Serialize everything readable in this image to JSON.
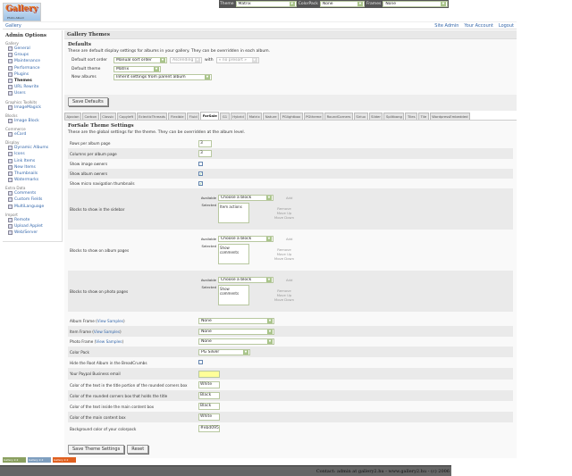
{
  "logo": {
    "text": "Gallery",
    "sub": "Photo Album"
  },
  "topbar": {
    "theme_label": "Theme",
    "theme_value": "Matrix",
    "colorpack_label": "ColorPack",
    "colorpack_value": "None",
    "frames_label": "Frames",
    "frames_value": "None"
  },
  "breadcrumb": "Gallery",
  "header_links": [
    "Site Admin",
    "Your Account",
    "Logout"
  ],
  "sidebar": {
    "title": "Admin Options",
    "groups": [
      {
        "label": "Gallery",
        "items": [
          "General",
          "Groups",
          "Maintenance",
          "Performance",
          "Plugins",
          "Themes",
          "URL Rewrite",
          "Users"
        ]
      },
      {
        "label": "Graphics Toolkits",
        "items": [
          "ImageMagick"
        ]
      },
      {
        "label": "Blocks",
        "items": [
          "Image Block"
        ]
      },
      {
        "label": "Commerce",
        "items": [
          "eCard"
        ]
      },
      {
        "label": "Display",
        "items": [
          "Dynamic Albums",
          "Icons",
          "Link Items",
          "New Items",
          "Thumbnails",
          "Watermarks"
        ]
      },
      {
        "label": "Extra Data",
        "items": [
          "Comments",
          "Custom Fields",
          "MultiLanguage"
        ]
      },
      {
        "label": "Import",
        "items": [
          "Remote",
          "Upload Applet",
          "Web/Server"
        ]
      }
    ],
    "current": "Themes"
  },
  "page": {
    "title": "Gallery Themes",
    "defaults_title": "Defaults",
    "defaults_desc": "These are default display settings for albums in your gallery. They can be overridden in each album.",
    "sort_label": "Default sort order",
    "sort_value": "Manual sort order",
    "order_value": "Ascending",
    "with_label": "with",
    "preset_value": "« no presort »",
    "theme_label": "Default theme",
    "theme_value": "Matrix",
    "new_albums_label": "New albums",
    "new_albums_value": "Inherit settings from parent album",
    "save_defaults": "Save Defaults"
  },
  "tabs": [
    "Ajaxian",
    "Carbon",
    "Classic",
    "Copyleft",
    "EclecticThreads",
    "Flexible",
    "Fluid",
    "ForSale",
    "G1",
    "Hybrid",
    "Matrix",
    "Nature",
    "PGlightbox",
    "PGtheme",
    "RoundCorners",
    "Siriux",
    "Slider",
    "Splitbang",
    "Tiles",
    "Tile",
    "WordpressEmbedded"
  ],
  "active_tab": "ForSale",
  "theme": {
    "title": "ForSale Theme Settings",
    "desc": "These are the global settings for the theme. They can be overridden at the album level.",
    "rows_label": "Rows per album page",
    "rows_value": "3",
    "cols_label": "Columns per album page",
    "cols_value": "3",
    "owners_label": "Show image owners",
    "owners_checked": false,
    "album_owners_label": "Show album owners",
    "album_owners_checked": true,
    "micro_label": "Show micro navigation thumbnails",
    "micro_checked": true,
    "available": "Available",
    "selected": "Selected",
    "choose": "Choose a block",
    "add": "Add",
    "remove": "Remove",
    "up": "Move Up",
    "down": "Move Down",
    "blocks": [
      {
        "label": "Blocks to show in the sidebar",
        "selected": "Item actions"
      },
      {
        "label": "Blocks to show on album pages",
        "selected": "Show comments"
      },
      {
        "label": "Blocks to show on photo pages",
        "selected": "Show comments"
      }
    ],
    "view_samples": "View Samples",
    "album_frame_label": "Album Frame",
    "album_frame_value": "None",
    "item_frame_label": "Item Frame",
    "item_frame_value": "None",
    "photo_frame_label": "Photo Frame",
    "photo_frame_value": "None",
    "colorpack_label": "Color Pack",
    "colorpack_value": "PG Silver",
    "hide_root_label": "Hide the Root Album in the BreadCrumbs",
    "hide_root_checked": false,
    "paypal_label": "Your Paypal Business email",
    "paypal_value": "",
    "title_text_label": "Color of the text in the title portion of the rounded corners box",
    "title_text_value": "White",
    "title_box_label": "Color of the rounded corners box that holds the title",
    "title_box_value": "Black",
    "main_text_label": "Color of the text inside the main content box",
    "main_text_value": "Black",
    "main_box_label": "Color of the main content box",
    "main_box_value": "White",
    "bg_label": "Background color of your colorpack",
    "bg_value": "#ebd095",
    "save": "Save Theme Settings",
    "reset": "Reset"
  },
  "badges": [
    "Gallery 2.2",
    "Gallery 2.2",
    "Gallery 2.2"
  ],
  "footer": "Contact: admin at gallery2.hu - www.gallery2.hu - (c) 2006",
  "colors": {
    "paypal_bg": "#ffff99",
    "footer_bg": "#666666",
    "link": "#3366aa"
  }
}
